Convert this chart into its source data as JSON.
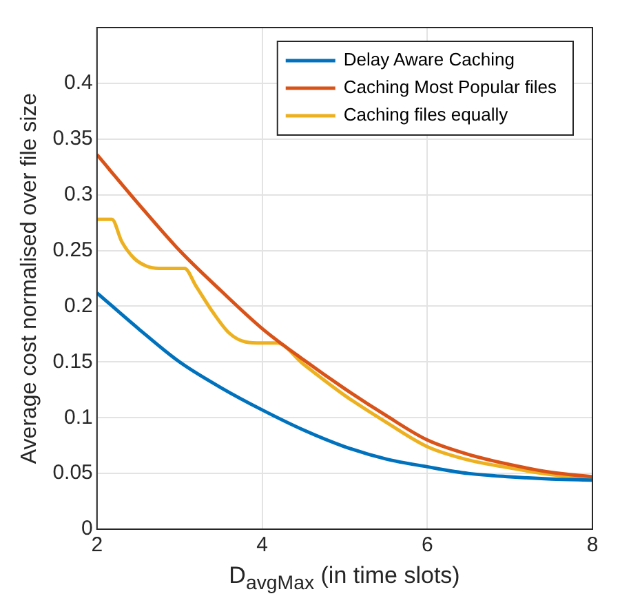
{
  "chart_data": {
    "type": "line",
    "xlabel": "D$_{avgMax}$ (in time slots)",
    "ylabel": "Average cost normalised over file size",
    "xlim": [
      2,
      8
    ],
    "xticks": [
      2,
      4,
      6,
      8
    ],
    "ylim": [
      0,
      0.45
    ],
    "yticks": [
      0,
      0.05,
      0.1,
      0.15,
      0.2,
      0.25,
      0.3,
      0.35,
      0.4
    ],
    "grid": true,
    "legend": "top right",
    "marker": "none",
    "line_style": "solid",
    "series": [
      {
        "name": "Delay Aware Caching",
        "color": "#0072bd",
        "x": [
          2,
          2.5,
          3,
          3.5,
          4,
          4.5,
          5,
          5.5,
          6,
          6.5,
          7,
          7.5,
          8
        ],
        "values": [
          0.212,
          0.18,
          0.15,
          0.127,
          0.107,
          0.089,
          0.074,
          0.063,
          0.056,
          0.05,
          0.047,
          0.045,
          0.044
        ]
      },
      {
        "name": "Caching Most Popular files",
        "color": "#d95319",
        "x": [
          2,
          2.5,
          3,
          3.5,
          4,
          4.5,
          5,
          5.5,
          6,
          6.5,
          7,
          7.5,
          8
        ],
        "values": [
          0.336,
          0.292,
          0.25,
          0.214,
          0.18,
          0.152,
          0.126,
          0.102,
          0.08,
          0.067,
          0.058,
          0.051,
          0.047
        ]
      },
      {
        "name": "Caching files equally",
        "color": "#edb120",
        "x": [
          2,
          2.18,
          2.3,
          2.45,
          2.6,
          2.75,
          3.06,
          3.2,
          3.4,
          3.6,
          3.8,
          4,
          4.18,
          4.5,
          5,
          5.5,
          6,
          6.5,
          7,
          7.5,
          8
        ],
        "values": [
          0.278,
          0.278,
          0.258,
          0.243,
          0.236,
          0.234,
          0.234,
          0.218,
          0.195,
          0.176,
          0.168,
          0.167,
          0.167,
          0.148,
          0.12,
          0.096,
          0.074,
          0.062,
          0.055,
          0.049,
          0.046
        ]
      }
    ]
  }
}
